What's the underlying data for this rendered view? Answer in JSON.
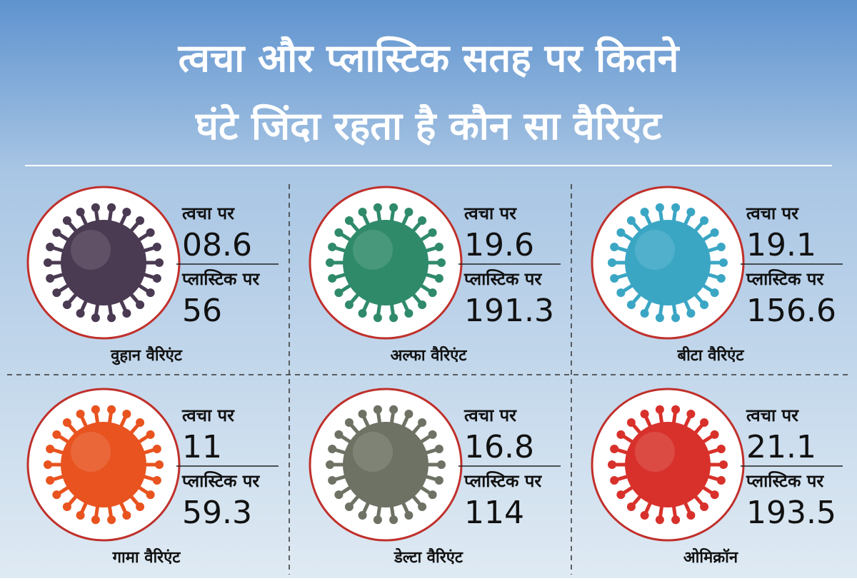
{
  "header": {
    "title_line1": "त्वचा और प्लास्टिक सतह पर कितने",
    "title_line2": "घंटे जिंदा रहता है कौन सा वैरिएंट"
  },
  "variants": [
    {
      "name": "वुहान वैरिएंट",
      "skin_label": "त्वचा पर",
      "skin_hours": "08.6",
      "plastic_label": "प्लास्टिक पर",
      "plastic_hours": "56",
      "color": "#4a3a52"
    },
    {
      "name": "अल्फा वैरिएंट",
      "skin_label": "त्वचा पर",
      "skin_hours": "19.6",
      "plastic_label": "प्लास्टिक पर",
      "plastic_hours": "191.3",
      "color": "#2f8a6a"
    },
    {
      "name": "बीटा वैरिएंट",
      "skin_label": "त्वचा पर",
      "skin_hours": "19.1",
      "plastic_label": "प्लास्टिक पर",
      "plastic_hours": "156.6",
      "color": "#3aa6c4"
    },
    {
      "name": "गामा वैरिएंट",
      "skin_label": "त्वचा पर",
      "skin_hours": "11",
      "plastic_label": "प्लास्टिक पर",
      "plastic_hours": "59.3",
      "color": "#e8531f"
    },
    {
      "name": "डेल्टा वैरिएंट",
      "skin_label": "त्वचा पर",
      "skin_hours": "16.8",
      "plastic_label": "प्लास्टिक पर",
      "plastic_hours": "114",
      "color": "#6d7264"
    },
    {
      "name": "ओमिक्रॉन",
      "skin_label": "त्वचा पर",
      "skin_hours": "21.1",
      "plastic_label": "प्लास्टिक पर",
      "plastic_hours": "193.5",
      "color": "#d8312b"
    }
  ]
}
